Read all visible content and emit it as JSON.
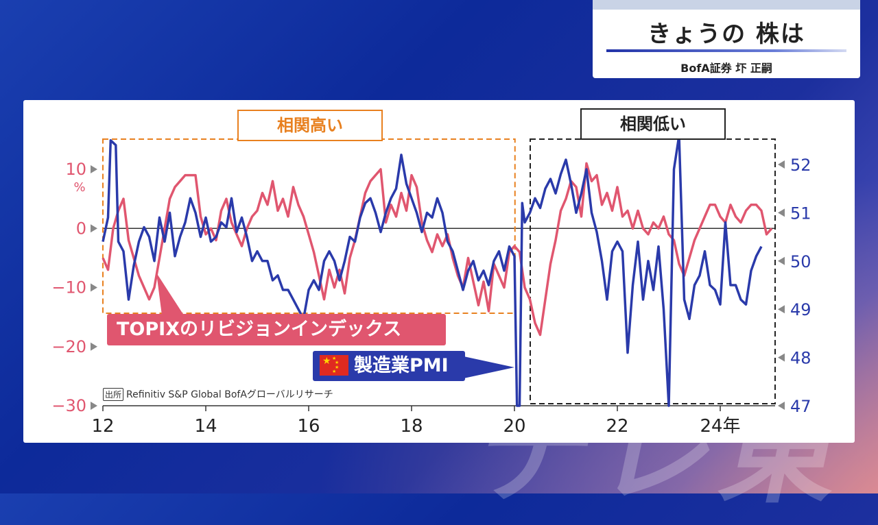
{
  "header": {
    "title": "きょうの 株は",
    "subtitle": "BofA証券 圷 正嗣"
  },
  "annotations": {
    "high_corr": "相関高い",
    "low_corr": "相関低い",
    "topix_label": "TOPIXのリビジョンインデックス",
    "pmi_label": "製造業PMI",
    "source_tag": "出所",
    "source_text": "Refinitiv S&P Global BofAグローバルリサーチ"
  },
  "watermark": "テレ東",
  "colors": {
    "topix": "#e0566f",
    "pmi": "#2a3aaa",
    "high_box": "#e8801f",
    "low_box": "#222222"
  },
  "chart_data": {
    "type": "line",
    "x_ticks": [
      "12",
      "14",
      "16",
      "18",
      "20",
      "22",
      "24年"
    ],
    "x_tick_values": [
      2012,
      2014,
      2016,
      2018,
      2020,
      2022,
      2024
    ],
    "xlim": [
      2012,
      2025.05
    ],
    "left_axis": {
      "ticks": [
        "10",
        "0",
        "−10",
        "−20",
        "−30"
      ],
      "tick_values": [
        10,
        0,
        -10,
        -20,
        -30
      ],
      "unit": "%",
      "ylim": [
        -30,
        15
      ]
    },
    "right_axis": {
      "ticks": [
        "52",
        "51",
        "50",
        "49",
        "48",
        "47"
      ],
      "tick_values": [
        52,
        51,
        50,
        49,
        48,
        47
      ],
      "ylim": [
        47,
        52.5
      ]
    },
    "series": [
      {
        "name": "TOPIXのリビジョンインデックス",
        "axis": "left",
        "points": [
          [
            2012.0,
            -5
          ],
          [
            2012.1,
            -7
          ],
          [
            2012.2,
            0
          ],
          [
            2012.3,
            3
          ],
          [
            2012.4,
            5
          ],
          [
            2012.5,
            -2
          ],
          [
            2012.6,
            -5
          ],
          [
            2012.7,
            -8
          ],
          [
            2012.8,
            -10
          ],
          [
            2012.9,
            -12
          ],
          [
            2013.0,
            -10
          ],
          [
            2013.1,
            -5
          ],
          [
            2013.2,
            0
          ],
          [
            2013.3,
            5
          ],
          [
            2013.4,
            7
          ],
          [
            2013.5,
            8
          ],
          [
            2013.6,
            9
          ],
          [
            2013.8,
            9
          ],
          [
            2013.9,
            2
          ],
          [
            2014.0,
            -1
          ],
          [
            2014.1,
            0
          ],
          [
            2014.2,
            -2
          ],
          [
            2014.3,
            3
          ],
          [
            2014.4,
            5
          ],
          [
            2014.5,
            1
          ],
          [
            2014.6,
            -1
          ],
          [
            2014.7,
            -3
          ],
          [
            2014.8,
            0
          ],
          [
            2014.9,
            2
          ],
          [
            2015.0,
            3
          ],
          [
            2015.1,
            6
          ],
          [
            2015.2,
            4
          ],
          [
            2015.3,
            8
          ],
          [
            2015.4,
            3
          ],
          [
            2015.5,
            5
          ],
          [
            2015.6,
            2
          ],
          [
            2015.7,
            7
          ],
          [
            2015.8,
            4
          ],
          [
            2015.9,
            2
          ],
          [
            2016.0,
            -1
          ],
          [
            2016.1,
            -4
          ],
          [
            2016.2,
            -8
          ],
          [
            2016.3,
            -12
          ],
          [
            2016.4,
            -7
          ],
          [
            2016.5,
            -10
          ],
          [
            2016.6,
            -7
          ],
          [
            2016.7,
            -11
          ],
          [
            2016.8,
            -5
          ],
          [
            2016.9,
            -2
          ],
          [
            2017.0,
            2
          ],
          [
            2017.1,
            6
          ],
          [
            2017.2,
            8
          ],
          [
            2017.3,
            9
          ],
          [
            2017.4,
            10
          ],
          [
            2017.5,
            1
          ],
          [
            2017.6,
            4
          ],
          [
            2017.7,
            2
          ],
          [
            2017.8,
            6
          ],
          [
            2017.9,
            3
          ],
          [
            2018.0,
            9
          ],
          [
            2018.1,
            7
          ],
          [
            2018.2,
            1
          ],
          [
            2018.3,
            -2
          ],
          [
            2018.4,
            -4
          ],
          [
            2018.5,
            -1
          ],
          [
            2018.6,
            -3
          ],
          [
            2018.7,
            -1
          ],
          [
            2018.8,
            -5
          ],
          [
            2018.9,
            -8
          ],
          [
            2019.0,
            -10
          ],
          [
            2019.1,
            -5
          ],
          [
            2019.2,
            -9
          ],
          [
            2019.3,
            -13
          ],
          [
            2019.4,
            -9
          ],
          [
            2019.5,
            -14
          ],
          [
            2019.6,
            -6
          ],
          [
            2019.7,
            -8
          ],
          [
            2019.8,
            -10
          ],
          [
            2019.9,
            -4
          ],
          [
            2020.0,
            -3
          ],
          [
            2020.1,
            -4
          ],
          [
            2020.2,
            -10
          ],
          [
            2020.3,
            -12
          ],
          [
            2020.4,
            -16
          ],
          [
            2020.5,
            -18
          ],
          [
            2020.6,
            -12
          ],
          [
            2020.7,
            -6
          ],
          [
            2020.8,
            -2
          ],
          [
            2020.9,
            3
          ],
          [
            2021.0,
            5
          ],
          [
            2021.1,
            8
          ],
          [
            2021.2,
            7
          ],
          [
            2021.3,
            2
          ],
          [
            2021.4,
            11
          ],
          [
            2021.5,
            8
          ],
          [
            2021.6,
            9
          ],
          [
            2021.7,
            4
          ],
          [
            2021.8,
            6
          ],
          [
            2021.9,
            3
          ],
          [
            2022.0,
            7
          ],
          [
            2022.1,
            2
          ],
          [
            2022.2,
            3
          ],
          [
            2022.3,
            0
          ],
          [
            2022.4,
            3
          ],
          [
            2022.5,
            0
          ],
          [
            2022.6,
            -1
          ],
          [
            2022.7,
            1
          ],
          [
            2022.8,
            0
          ],
          [
            2022.9,
            2
          ],
          [
            2023.0,
            -1
          ],
          [
            2023.1,
            -2
          ],
          [
            2023.2,
            -6
          ],
          [
            2023.3,
            -8
          ],
          [
            2023.4,
            -5
          ],
          [
            2023.5,
            -2
          ],
          [
            2023.6,
            0
          ],
          [
            2023.7,
            2
          ],
          [
            2023.8,
            4
          ],
          [
            2023.9,
            4
          ],
          [
            2024.0,
            2
          ],
          [
            2024.1,
            1
          ],
          [
            2024.2,
            4
          ],
          [
            2024.3,
            2
          ],
          [
            2024.4,
            1
          ],
          [
            2024.5,
            3
          ],
          [
            2024.6,
            4
          ],
          [
            2024.7,
            4
          ],
          [
            2024.8,
            3
          ],
          [
            2024.9,
            -1
          ],
          [
            2025.0,
            0
          ]
        ]
      },
      {
        "name": "製造業PMI",
        "axis": "right",
        "points": [
          [
            2012.0,
            50.4
          ],
          [
            2012.1,
            50.9
          ],
          [
            2012.15,
            52.5
          ],
          [
            2012.25,
            52.4
          ],
          [
            2012.3,
            50.4
          ],
          [
            2012.4,
            50.2
          ],
          [
            2012.5,
            49.2
          ],
          [
            2012.6,
            49.9
          ],
          [
            2012.7,
            50.4
          ],
          [
            2012.8,
            50.7
          ],
          [
            2012.9,
            50.5
          ],
          [
            2013.0,
            50.0
          ],
          [
            2013.1,
            50.9
          ],
          [
            2013.2,
            50.4
          ],
          [
            2013.3,
            51.0
          ],
          [
            2013.4,
            50.1
          ],
          [
            2013.5,
            50.5
          ],
          [
            2013.6,
            50.8
          ],
          [
            2013.7,
            51.3
          ],
          [
            2013.8,
            51.0
          ],
          [
            2013.9,
            50.5
          ],
          [
            2014.0,
            50.9
          ],
          [
            2014.1,
            50.4
          ],
          [
            2014.2,
            50.5
          ],
          [
            2014.3,
            50.8
          ],
          [
            2014.4,
            50.7
          ],
          [
            2014.5,
            51.3
          ],
          [
            2014.6,
            50.6
          ],
          [
            2014.7,
            50.9
          ],
          [
            2014.8,
            50.5
          ],
          [
            2014.9,
            50.0
          ],
          [
            2015.0,
            50.2
          ],
          [
            2015.1,
            50.0
          ],
          [
            2015.2,
            50.0
          ],
          [
            2015.3,
            49.6
          ],
          [
            2015.4,
            49.7
          ],
          [
            2015.5,
            49.4
          ],
          [
            2015.6,
            49.4
          ],
          [
            2015.7,
            49.2
          ],
          [
            2015.8,
            49.0
          ],
          [
            2015.9,
            48.8
          ],
          [
            2016.0,
            49.4
          ],
          [
            2016.1,
            49.6
          ],
          [
            2016.2,
            49.4
          ],
          [
            2016.3,
            50.0
          ],
          [
            2016.4,
            50.2
          ],
          [
            2016.5,
            50.0
          ],
          [
            2016.6,
            49.6
          ],
          [
            2016.7,
            50.0
          ],
          [
            2016.8,
            50.5
          ],
          [
            2016.9,
            50.4
          ],
          [
            2017.0,
            50.9
          ],
          [
            2017.1,
            51.2
          ],
          [
            2017.2,
            51.3
          ],
          [
            2017.3,
            51.0
          ],
          [
            2017.4,
            50.6
          ],
          [
            2017.5,
            51.0
          ],
          [
            2017.6,
            51.3
          ],
          [
            2017.7,
            51.5
          ],
          [
            2017.8,
            52.2
          ],
          [
            2017.9,
            51.6
          ],
          [
            2018.0,
            51.3
          ],
          [
            2018.1,
            51.0
          ],
          [
            2018.2,
            50.6
          ],
          [
            2018.3,
            51.0
          ],
          [
            2018.4,
            50.9
          ],
          [
            2018.5,
            51.3
          ],
          [
            2018.6,
            51.0
          ],
          [
            2018.7,
            50.4
          ],
          [
            2018.8,
            50.2
          ],
          [
            2018.9,
            49.8
          ],
          [
            2019.0,
            49.4
          ],
          [
            2019.1,
            49.8
          ],
          [
            2019.2,
            50.0
          ],
          [
            2019.3,
            49.6
          ],
          [
            2019.4,
            49.8
          ],
          [
            2019.5,
            49.5
          ],
          [
            2019.6,
            50.0
          ],
          [
            2019.7,
            50.2
          ],
          [
            2019.8,
            49.8
          ],
          [
            2019.9,
            50.3
          ],
          [
            2020.0,
            50.1
          ],
          [
            2020.05,
            47.0
          ],
          [
            2020.1,
            47.0
          ],
          [
            2020.15,
            51.2
          ],
          [
            2020.2,
            50.8
          ],
          [
            2020.3,
            51.0
          ],
          [
            2020.4,
            51.3
          ],
          [
            2020.5,
            51.1
          ],
          [
            2020.6,
            51.5
          ],
          [
            2020.7,
            51.7
          ],
          [
            2020.8,
            51.4
          ],
          [
            2020.9,
            51.8
          ],
          [
            2021.0,
            52.1
          ],
          [
            2021.1,
            51.6
          ],
          [
            2021.2,
            51.0
          ],
          [
            2021.3,
            51.4
          ],
          [
            2021.4,
            51.9
          ],
          [
            2021.5,
            51.0
          ],
          [
            2021.6,
            50.6
          ],
          [
            2021.7,
            50.0
          ],
          [
            2021.8,
            49.2
          ],
          [
            2021.9,
            50.2
          ],
          [
            2022.0,
            50.4
          ],
          [
            2022.1,
            50.2
          ],
          [
            2022.2,
            48.1
          ],
          [
            2022.3,
            49.5
          ],
          [
            2022.4,
            50.4
          ],
          [
            2022.5,
            49.2
          ],
          [
            2022.6,
            50.0
          ],
          [
            2022.7,
            49.4
          ],
          [
            2022.8,
            50.3
          ],
          [
            2022.9,
            49.0
          ],
          [
            2023.0,
            47.0
          ],
          [
            2023.1,
            51.9
          ],
          [
            2023.2,
            52.6
          ],
          [
            2023.3,
            49.2
          ],
          [
            2023.4,
            48.8
          ],
          [
            2023.5,
            49.5
          ],
          [
            2023.6,
            49.7
          ],
          [
            2023.7,
            50.2
          ],
          [
            2023.8,
            49.5
          ],
          [
            2023.9,
            49.4
          ],
          [
            2024.0,
            49.1
          ],
          [
            2024.1,
            50.8
          ],
          [
            2024.2,
            49.5
          ],
          [
            2024.3,
            49.5
          ],
          [
            2024.4,
            49.2
          ],
          [
            2024.5,
            49.1
          ],
          [
            2024.6,
            49.8
          ],
          [
            2024.7,
            50.1
          ],
          [
            2024.8,
            50.3
          ]
        ]
      }
    ],
    "regions": [
      {
        "label": "相関高い",
        "x_range": [
          2012.0,
          2020.05
        ],
        "style": "dashed-orange"
      },
      {
        "label": "相関低い",
        "x_range": [
          2020.4,
          2025.05
        ],
        "style": "dashed-black"
      }
    ]
  }
}
